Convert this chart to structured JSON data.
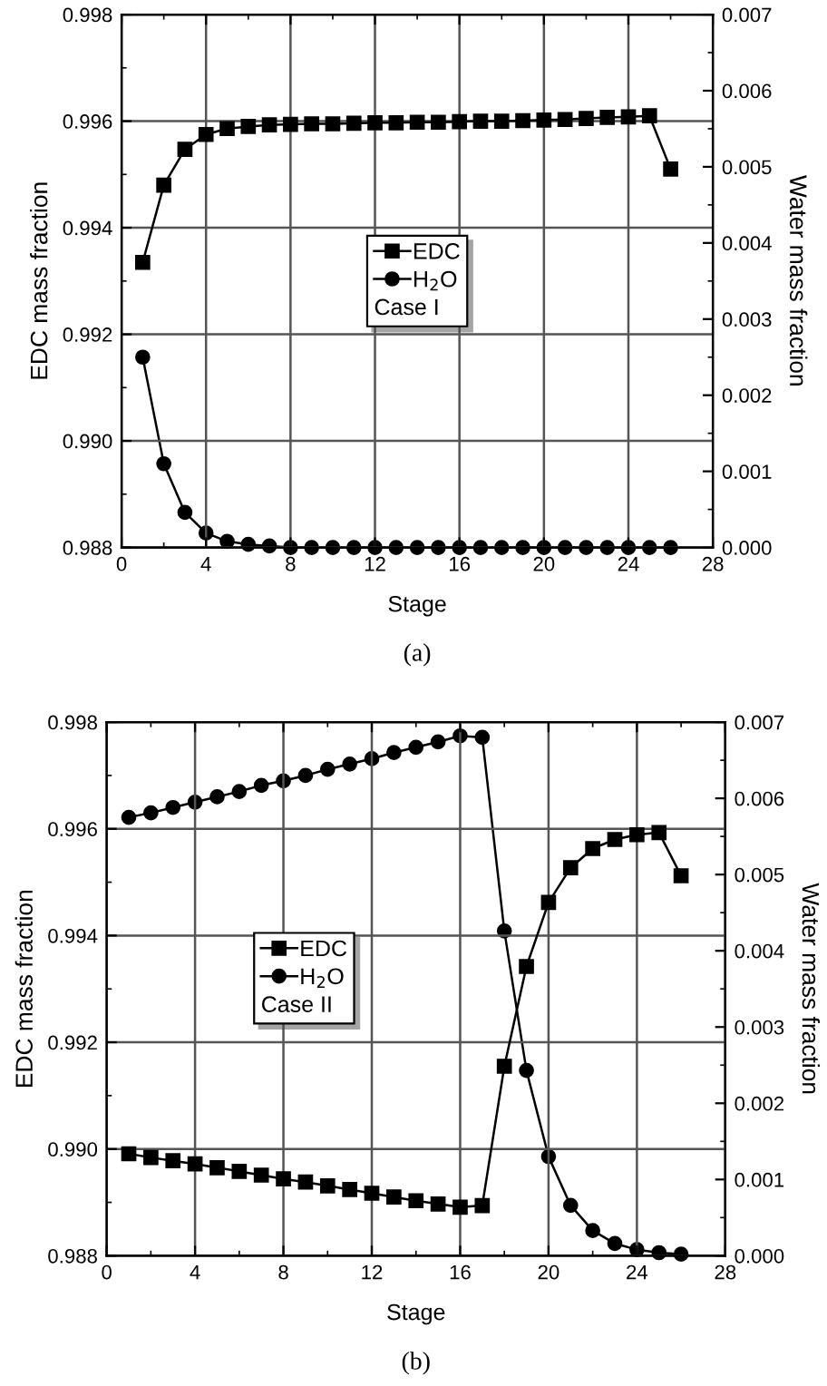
{
  "chart_data": [
    {
      "type": "line",
      "xlabel": "Stage",
      "ylabel": "EDC mass fraction",
      "y2label": "Water mass fraction",
      "legend_title": "Case I",
      "annotations": [
        "(a)"
      ],
      "x": [
        1,
        2,
        3,
        4,
        5,
        6,
        7,
        8,
        9,
        10,
        11,
        12,
        13,
        14,
        15,
        16,
        17,
        18,
        19,
        20,
        21,
        22,
        23,
        24,
        25,
        26
      ],
      "series": [
        {
          "name": "EDC",
          "color": "#000000",
          "marker": "square",
          "values": [
            0.99335,
            0.9948,
            0.99547,
            0.99575,
            0.99586,
            0.9959,
            0.99593,
            0.99594,
            0.99595,
            0.99595,
            0.99596,
            0.99597,
            0.99597,
            0.99598,
            0.99598,
            0.99599,
            0.996,
            0.996,
            0.99601,
            0.99602,
            0.99603,
            0.99605,
            0.99607,
            0.99608,
            0.9961,
            0.9951
          ]
        },
        {
          "name": "H$_{2}$O",
          "color": "#000000",
          "marker": "circle",
          "axis": "y2",
          "values": [
            0.0025,
            0.0011,
            0.00046,
            0.00019,
            8e-05,
            4e-05,
            2e-05,
            0,
            0,
            0,
            0,
            0,
            0,
            0,
            0,
            0,
            0,
            0,
            0,
            0,
            0,
            0,
            0,
            0,
            0,
            0
          ]
        }
      ],
      "xlim": [
        0,
        28
      ],
      "xticks": [
        0,
        4,
        8,
        12,
        16,
        20,
        24,
        28
      ],
      "ylim": [
        0.988,
        0.998
      ],
      "yticks": [
        {
          "value": 0.988,
          "label": "0.988"
        },
        {
          "value": 0.99,
          "label": "0.990"
        },
        {
          "value": 0.992,
          "label": "0.992"
        },
        {
          "value": 0.994,
          "label": "0.994"
        },
        {
          "value": 0.996,
          "label": "0.996"
        },
        {
          "value": 0.998,
          "label": "0.998"
        }
      ],
      "y2lim": [
        0,
        0.007
      ],
      "y2ticks": [
        {
          "value": 0,
          "label": "0.000"
        },
        {
          "value": 0.001,
          "label": "0.001"
        },
        {
          "value": 0.002,
          "label": "0.002"
        },
        {
          "value": 0.003,
          "label": "0.003"
        },
        {
          "value": 0.004,
          "label": "0.004"
        },
        {
          "value": 0.005,
          "label": "0.005"
        },
        {
          "value": 0.006,
          "label": "0.006"
        },
        {
          "value": 0.007,
          "label": "0.007"
        }
      ],
      "grid": true,
      "legend": "center",
      "line_style": "solid"
    },
    {
      "type": "line",
      "xlabel": "Stage",
      "ylabel": "EDC mass fraction",
      "y2label": "Water mass fraction",
      "legend_title": "Case II",
      "annotations": [
        "(b)"
      ],
      "x": [
        1,
        2,
        3,
        4,
        5,
        6,
        7,
        8,
        9,
        10,
        11,
        12,
        13,
        14,
        15,
        16,
        17,
        18,
        19,
        20,
        21,
        22,
        23,
        24,
        25,
        26
      ],
      "series": [
        {
          "name": "EDC",
          "color": "#000000",
          "marker": "square",
          "values": [
            0.98991,
            0.98984,
            0.98978,
            0.98972,
            0.98965,
            0.98958,
            0.98951,
            0.98944,
            0.98938,
            0.98931,
            0.98924,
            0.98917,
            0.9891,
            0.98903,
            0.98897,
            0.98891,
            0.98894,
            0.99155,
            0.99342,
            0.99462,
            0.99527,
            0.99563,
            0.9958,
            0.99589,
            0.99593,
            0.99512
          ]
        },
        {
          "name": "H$_{2}$O",
          "color": "#000000",
          "marker": "circle",
          "axis": "y2",
          "values": [
            0.00575,
            0.00581,
            0.00588,
            0.00595,
            0.00602,
            0.00609,
            0.00617,
            0.00623,
            0.0063,
            0.00638,
            0.00645,
            0.00652,
            0.0066,
            0.00667,
            0.00674,
            0.00682,
            0.0068,
            0.00426,
            0.00243,
            0.0013,
            0.00066,
            0.00033,
            0.00016,
            8e-05,
            4e-05,
            2e-05
          ]
        }
      ],
      "xlim": [
        0,
        28
      ],
      "xticks": [
        0,
        4,
        8,
        12,
        16,
        20,
        24,
        28
      ],
      "ylim": [
        0.988,
        0.998
      ],
      "yticks": [
        {
          "value": 0.988,
          "label": "0.988"
        },
        {
          "value": 0.99,
          "label": "0.990"
        },
        {
          "value": 0.992,
          "label": "0.992"
        },
        {
          "value": 0.994,
          "label": "0.994"
        },
        {
          "value": 0.996,
          "label": "0.996"
        },
        {
          "value": 0.998,
          "label": "0.998"
        }
      ],
      "y2lim": [
        0,
        0.007
      ],
      "y2ticks": [
        {
          "value": 0,
          "label": "0.000"
        },
        {
          "value": 0.001,
          "label": "0.001"
        },
        {
          "value": 0.002,
          "label": "0.002"
        },
        {
          "value": 0.003,
          "label": "0.003"
        },
        {
          "value": 0.004,
          "label": "0.004"
        },
        {
          "value": 0.005,
          "label": "0.005"
        },
        {
          "value": 0.006,
          "label": "0.006"
        },
        {
          "value": 0.007,
          "label": "0.007"
        }
      ],
      "grid": true,
      "legend": "center left",
      "line_style": "solid"
    }
  ]
}
